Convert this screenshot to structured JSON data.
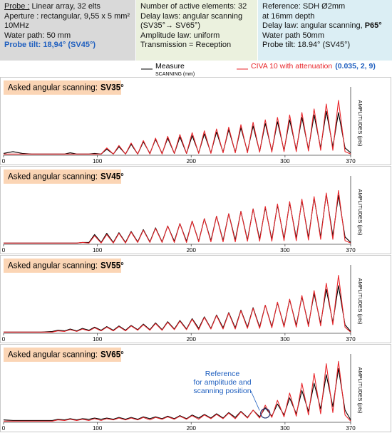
{
  "header": {
    "probe": {
      "label": "Probe :",
      "text": "Linear array, 32 elts",
      "lines": [
        "Aperture : rectangular, 9,55 x 5 mm²",
        "10MHz",
        "Water path: 50 mm"
      ],
      "tilt": "Probe tilt: 18,94° (SV45°)"
    },
    "elements": {
      "lines": [
        "Number of active elements: 32",
        "Delay laws: angular scanning",
        "(SV35°→ SV65°)",
        "Amplitude law: uniform",
        "Transmission = Reception"
      ]
    },
    "reference": {
      "lines": [
        "Reference: SDH Ø2mm",
        "at 16mm  depth"
      ],
      "delay_law": "Delay law: angular scanning,",
      "delay_law_value": "P65°",
      "lines2": [
        "Water path 50mm",
        "Probe tilt: 18.94° (SV45°)"
      ]
    }
  },
  "legend_note": "(0.035, 2, 9)",
  "chart_data": [
    {
      "type": "line",
      "title": "Asked angular scanning:",
      "title_strong": "SV35°",
      "xlabel": "SCANNING (mm)",
      "ylabel": "AMPLITUDES (pts)",
      "xlim": [
        0,
        370
      ],
      "xticks": [
        0,
        100,
        200,
        300,
        370
      ],
      "ylim": [
        0,
        105
      ],
      "x": [
        0,
        10,
        20,
        30,
        40,
        52,
        58,
        65,
        71,
        78,
        84,
        91,
        97,
        104,
        110,
        117,
        123,
        130,
        136,
        143,
        149,
        156,
        162,
        169,
        175,
        182,
        188,
        195,
        201,
        208,
        214,
        221,
        227,
        234,
        240,
        247,
        253,
        260,
        266,
        273,
        279,
        286,
        292,
        299,
        305,
        312,
        318,
        325,
        331,
        338,
        344,
        351,
        357,
        364,
        370
      ],
      "series": [
        {
          "name": "Measure",
          "color": "#000000",
          "values": [
            3,
            6,
            3,
            2,
            2,
            2,
            2,
            2,
            4,
            2,
            2,
            2,
            3,
            2,
            10,
            2,
            14,
            2,
            18,
            2,
            22,
            3,
            26,
            3,
            28,
            3,
            30,
            3,
            32,
            4,
            35,
            4,
            38,
            5,
            42,
            5,
            45,
            6,
            48,
            6,
            52,
            7,
            55,
            8,
            58,
            9,
            62,
            10,
            66,
            12,
            72,
            14,
            70,
            12,
            4
          ]
        },
        {
          "name": "CIVA 10 with attenuation",
          "color": "#e8262b",
          "values": [
            2,
            2,
            2,
            2,
            2,
            2,
            2,
            2,
            2,
            2,
            2,
            2,
            2,
            2,
            12,
            2,
            16,
            2,
            20,
            2,
            24,
            2,
            28,
            2,
            31,
            3,
            34,
            3,
            37,
            3,
            40,
            3,
            43,
            4,
            46,
            4,
            50,
            4,
            54,
            5,
            58,
            5,
            62,
            6,
            66,
            6,
            70,
            7,
            76,
            8,
            84,
            8,
            90,
            6,
            2
          ]
        }
      ]
    },
    {
      "type": "line",
      "title": "Asked angular scanning:",
      "title_strong": "SV45°",
      "ylabel": "AMPLITUDES (pts)",
      "xlim": [
        0,
        370
      ],
      "xticks": [
        0,
        100,
        200,
        300,
        370
      ],
      "ylim": [
        0,
        105
      ],
      "x": [
        0,
        10,
        20,
        30,
        40,
        52,
        58,
        65,
        71,
        78,
        84,
        91,
        97,
        104,
        110,
        117,
        123,
        130,
        136,
        143,
        149,
        156,
        162,
        169,
        175,
        182,
        188,
        195,
        201,
        208,
        214,
        221,
        227,
        234,
        240,
        247,
        253,
        260,
        266,
        273,
        279,
        286,
        292,
        299,
        305,
        312,
        318,
        325,
        331,
        338,
        344,
        351,
        357,
        364,
        370
      ],
      "series": [
        {
          "name": "Measure",
          "color": "#000000",
          "values": [
            2,
            2,
            2,
            2,
            2,
            2,
            2,
            2,
            2,
            2,
            3,
            3,
            16,
            3,
            18,
            3,
            19,
            3,
            21,
            4,
            24,
            4,
            27,
            4,
            30,
            5,
            34,
            5,
            38,
            5,
            42,
            6,
            46,
            6,
            50,
            7,
            54,
            7,
            58,
            8,
            60,
            8,
            64,
            9,
            68,
            10,
            72,
            11,
            76,
            12,
            82,
            14,
            80,
            12,
            3
          ]
        },
        {
          "name": "CIVA 10 with attenuation",
          "color": "#e8262b",
          "values": [
            2,
            2,
            2,
            2,
            2,
            2,
            2,
            2,
            2,
            2,
            3,
            2,
            14,
            2,
            16,
            2,
            18,
            2,
            20,
            3,
            23,
            3,
            26,
            3,
            30,
            3,
            34,
            3,
            38,
            4,
            42,
            4,
            46,
            4,
            50,
            4,
            54,
            5,
            58,
            5,
            62,
            5,
            66,
            6,
            70,
            6,
            74,
            7,
            78,
            8,
            84,
            8,
            88,
            6,
            2
          ]
        }
      ]
    },
    {
      "type": "line",
      "title": "Asked angular scanning:",
      "title_strong": "SV55°",
      "ylabel": "AMPLITUDES (pts)",
      "xlim": [
        0,
        370
      ],
      "xticks": [
        0,
        100,
        200,
        300,
        370
      ],
      "ylim": [
        0,
        105
      ],
      "x": [
        0,
        10,
        20,
        30,
        40,
        52,
        58,
        65,
        71,
        78,
        84,
        91,
        97,
        104,
        110,
        117,
        123,
        130,
        136,
        143,
        149,
        156,
        162,
        169,
        175,
        182,
        188,
        195,
        201,
        208,
        214,
        221,
        227,
        234,
        240,
        247,
        253,
        260,
        266,
        273,
        279,
        286,
        292,
        299,
        305,
        312,
        318,
        325,
        331,
        338,
        344,
        351,
        357,
        364,
        370
      ],
      "series": [
        {
          "name": "Measure",
          "color": "#000000",
          "values": [
            2,
            2,
            2,
            2,
            2,
            3,
            5,
            4,
            7,
            4,
            8,
            5,
            10,
            5,
            11,
            5,
            12,
            5,
            13,
            6,
            15,
            6,
            17,
            6,
            19,
            7,
            21,
            7,
            24,
            8,
            27,
            8,
            30,
            9,
            34,
            9,
            38,
            10,
            42,
            10,
            46,
            11,
            50,
            12,
            55,
            13,
            60,
            14,
            65,
            16,
            72,
            18,
            78,
            14,
            3
          ]
        },
        {
          "name": "CIVA 10 with attenuation",
          "color": "#e8262b",
          "values": [
            2,
            2,
            2,
            2,
            2,
            2,
            4,
            3,
            6,
            3,
            7,
            4,
            9,
            4,
            10,
            4,
            11,
            4,
            12,
            5,
            14,
            5,
            16,
            5,
            18,
            6,
            20,
            6,
            23,
            6,
            26,
            7,
            29,
            7,
            33,
            7,
            37,
            8,
            41,
            8,
            46,
            9,
            51,
            10,
            56,
            10,
            62,
            11,
            70,
            12,
            82,
            14,
            95,
            10,
            2
          ]
        }
      ]
    },
    {
      "type": "line",
      "title": "Asked angular scanning:",
      "title_strong": "SV65°",
      "ylabel": "AMPLITUDES (pts)",
      "annotation": [
        "Reference",
        "for amplitude and",
        "scanning position"
      ],
      "xlim": [
        0,
        370
      ],
      "xticks": [
        0,
        100,
        200,
        300,
        370
      ],
      "ylim": [
        0,
        105
      ],
      "x": [
        0,
        10,
        20,
        30,
        40,
        52,
        58,
        65,
        71,
        78,
        84,
        91,
        97,
        104,
        110,
        117,
        123,
        130,
        136,
        143,
        149,
        156,
        162,
        169,
        175,
        182,
        188,
        195,
        201,
        208,
        214,
        221,
        227,
        234,
        240,
        247,
        253,
        260,
        266,
        273,
        279,
        286,
        292,
        299,
        305,
        312,
        318,
        325,
        331,
        338,
        344,
        351,
        357,
        364,
        370
      ],
      "series": [
        {
          "name": "Measure",
          "color": "#000000",
          "values": [
            4,
            3,
            3,
            3,
            3,
            3,
            5,
            4,
            6,
            4,
            6,
            5,
            7,
            5,
            7,
            5,
            8,
            5,
            8,
            5,
            9,
            6,
            9,
            6,
            10,
            6,
            11,
            6,
            12,
            7,
            13,
            7,
            14,
            7,
            16,
            8,
            18,
            8,
            20,
            9,
            24,
            10,
            30,
            12,
            40,
            14,
            52,
            18,
            64,
            22,
            78,
            26,
            88,
            20,
            4
          ]
        },
        {
          "name": "CIVA 10 with attenuation",
          "color": "#e8262b",
          "values": [
            2,
            2,
            2,
            2,
            2,
            2,
            4,
            3,
            5,
            3,
            5,
            3,
            6,
            3,
            6,
            4,
            7,
            4,
            7,
            4,
            8,
            4,
            8,
            5,
            9,
            5,
            10,
            5,
            11,
            5,
            12,
            6,
            13,
            6,
            15,
            6,
            17,
            7,
            20,
            7,
            28,
            8,
            36,
            9,
            48,
            10,
            64,
            12,
            80,
            14,
            96,
            16,
            100,
            12,
            2
          ]
        }
      ]
    }
  ]
}
